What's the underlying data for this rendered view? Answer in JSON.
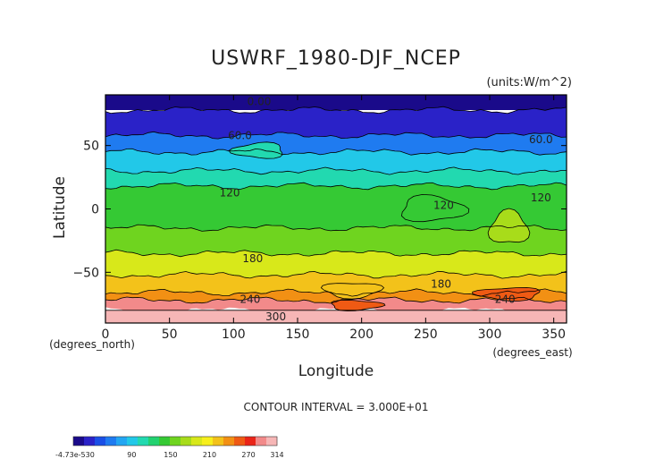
{
  "chart_data": {
    "type": "heatmap",
    "title": "USWRF_1980-DJF_NCEP",
    "units_label": "(units:W/m^2)",
    "xlabel": "Longitude",
    "ylabel": "Latitude",
    "x_unit_note": "(degrees_east)",
    "y_unit_note": "(degrees_north)",
    "xlim": [
      0,
      360
    ],
    "ylim": [
      -90,
      90
    ],
    "x_ticks": [
      0,
      50,
      100,
      150,
      200,
      250,
      300,
      350
    ],
    "y_ticks": [
      50,
      0,
      -50
    ],
    "x_tick_labels": [
      "0",
      "50",
      "100",
      "150",
      "200",
      "250",
      "300",
      "350"
    ],
    "y_tick_labels": [
      "50",
      "0",
      "−50"
    ],
    "contour_interval_text": "CONTOUR INTERVAL = 3.000E+01",
    "contour_labels": [
      {
        "text": "0.00",
        "lon": 120,
        "lat": 82
      },
      {
        "text": "60.0",
        "lon": 105,
        "lat": 55
      },
      {
        "text": "60.0",
        "lon": 340,
        "lat": 52
      },
      {
        "text": "120",
        "lon": 97,
        "lat": 10
      },
      {
        "text": "120",
        "lon": 264,
        "lat": 0
      },
      {
        "text": "120",
        "lon": 340,
        "lat": 6
      },
      {
        "text": "180",
        "lon": 115,
        "lat": -42
      },
      {
        "text": "180",
        "lon": 262,
        "lat": -62
      },
      {
        "text": "240",
        "lon": 113,
        "lat": -74
      },
      {
        "text": "240",
        "lon": 312,
        "lat": -74
      },
      {
        "text": "300",
        "lon": 133,
        "lat": -88
      }
    ],
    "zonal_mean_bands": [
      {
        "lat_from": 90,
        "lat_to": 78,
        "value": 0
      },
      {
        "lat_from": 78,
        "lat_to": 58,
        "value": 20
      },
      {
        "lat_from": 58,
        "lat_to": 45,
        "value": 60
      },
      {
        "lat_from": 45,
        "lat_to": 30,
        "value": 95
      },
      {
        "lat_from": 30,
        "lat_to": 18,
        "value": 115
      },
      {
        "lat_from": 18,
        "lat_to": -15,
        "value": 135
      },
      {
        "lat_from": -15,
        "lat_to": -35,
        "value": 155
      },
      {
        "lat_from": -35,
        "lat_to": -52,
        "value": 185
      },
      {
        "lat_from": -52,
        "lat_to": -66,
        "value": 215
      },
      {
        "lat_from": -66,
        "lat_to": -72,
        "value": 235
      },
      {
        "lat_from": -72,
        "lat_to": -80,
        "value": 285
      },
      {
        "lat_from": -80,
        "lat_to": -90,
        "value": 310
      }
    ],
    "features": [
      {
        "lon_from": 300,
        "lon_to": 330,
        "lat_from": -2,
        "lat_to": -28,
        "value": 175
      },
      {
        "lon_from": 230,
        "lon_to": 280,
        "lat_from": 10,
        "lat_to": -10,
        "value": 145
      },
      {
        "lon_from": 175,
        "lon_to": 215,
        "lat_from": -72,
        "lat_to": -80,
        "value": 255
      },
      {
        "lon_from": 170,
        "lon_to": 215,
        "lat_from": -58,
        "lat_to": -70,
        "value": 225
      },
      {
        "lon_from": 290,
        "lon_to": 340,
        "lat_from": -62,
        "lat_to": -72,
        "value": 250
      },
      {
        "lon_from": 100,
        "lon_to": 140,
        "lat_from": 52,
        "lat_to": 40,
        "value": 100
      }
    ],
    "colorbar": {
      "min_label": "-4.73e-530",
      "tick_labels": [
        "90",
        "150",
        "210",
        "270",
        "314"
      ],
      "tick_values": [
        90,
        150,
        210,
        270,
        314
      ],
      "min": 0,
      "max": 314,
      "colors": [
        "#1a0a8a",
        "#2a22c8",
        "#1a4fe6",
        "#1f7bf0",
        "#23a6f2",
        "#22c8e8",
        "#22d9b0",
        "#22d270",
        "#35c934",
        "#6fd41f",
        "#a8dc1a",
        "#d8e81a",
        "#f7ef1c",
        "#f3c21a",
        "#f29014",
        "#ef5a14",
        "#ea2418",
        "#f28a8a",
        "#f6b6b6"
      ]
    }
  }
}
